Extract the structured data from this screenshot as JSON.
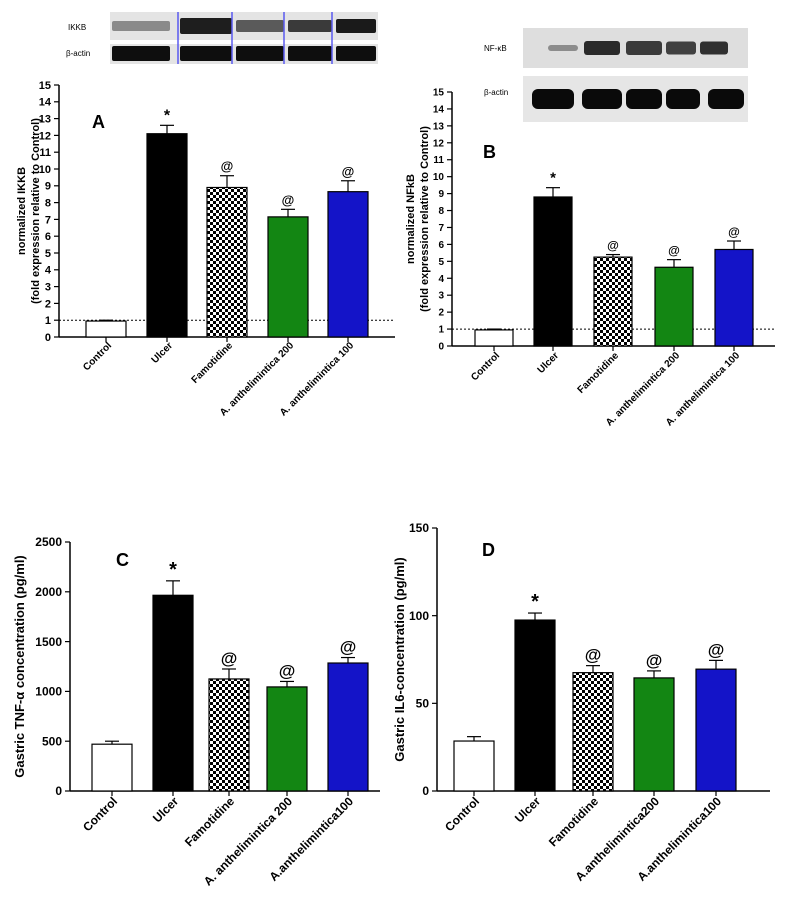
{
  "colors": {
    "control": "#ffffff",
    "ulcer": "#000000",
    "famotidine": "checkerboard",
    "a200": "#138613",
    "a100": "#1414c8",
    "axis": "#000000"
  },
  "blots": {
    "a_labels": [
      "IKKB",
      "β-actin"
    ],
    "b_labels": [
      "NF-κB",
      "β-actin"
    ]
  },
  "chart_data": [
    {
      "type": "bar",
      "panel_label": "A",
      "ylabel": "normalized IKKB",
      "ylabel2": "(fold expression relative to Control)",
      "categories": [
        "Control",
        "Ulcer",
        "Famotidine",
        "A. anthelimintica 200",
        "A. anthelimintica 100"
      ],
      "values": [
        0.95,
        12.1,
        8.9,
        7.15,
        8.65
      ],
      "errors": [
        0.05,
        0.5,
        0.7,
        0.45,
        0.65
      ],
      "annotations": [
        "",
        "*",
        "@",
        "@",
        "@"
      ],
      "yticks": [
        0,
        1,
        2,
        3,
        4,
        5,
        6,
        7,
        8,
        9,
        10,
        11,
        12,
        13,
        14,
        15
      ],
      "ylim": [
        0,
        15
      ],
      "reference_line": 1
    },
    {
      "type": "bar",
      "panel_label": "B",
      "ylabel": "normalized NFkB",
      "ylabel2": "(fold expression relative to Control)",
      "categories": [
        "Control",
        "Ulcer",
        "Famotidine",
        "A. anthelimintica 200",
        "A. anthelimintica 100"
      ],
      "values": [
        0.95,
        8.8,
        5.25,
        4.65,
        5.7
      ],
      "errors": [
        0.05,
        0.55,
        0.15,
        0.45,
        0.5
      ],
      "annotations": [
        "",
        "*",
        "@",
        "@",
        "@"
      ],
      "yticks": [
        0,
        1,
        2,
        3,
        4,
        5,
        6,
        7,
        8,
        9,
        10,
        11,
        12,
        13,
        14,
        15
      ],
      "ylim": [
        0,
        15
      ],
      "reference_line": 1
    },
    {
      "type": "bar",
      "panel_label": "C",
      "ylabel": "Gastric TNF-α concentration (pg/ml)",
      "categories": [
        "Control",
        "Ulcer",
        "Famotidine",
        "A. anthelimintica 200",
        "A.anthelimintica100"
      ],
      "values": [
        470,
        1965,
        1125,
        1045,
        1285
      ],
      "errors": [
        30,
        145,
        100,
        55,
        55
      ],
      "annotations": [
        "",
        "*",
        "@",
        "@",
        "@"
      ],
      "yticks": [
        0,
        500,
        1000,
        1500,
        2000,
        2500
      ],
      "ylim": [
        0,
        2500
      ]
    },
    {
      "type": "bar",
      "panel_label": "D",
      "ylabel": "Gastric IL6-concentration (pg/ml)",
      "categories": [
        "Control",
        "Ulcer",
        "Famotidine",
        "A.anthelimintica200",
        "A.anthelimintica100"
      ],
      "values": [
        28.5,
        97.5,
        67.5,
        64.5,
        69.5
      ],
      "errors": [
        2.5,
        4,
        4,
        4,
        5
      ],
      "annotations": [
        "",
        "*",
        "@",
        "@",
        "@"
      ],
      "yticks": [
        0,
        50,
        100,
        150
      ],
      "ylim": [
        0,
        150
      ]
    }
  ]
}
